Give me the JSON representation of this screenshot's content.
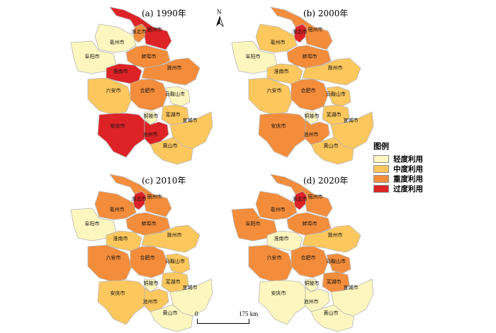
{
  "legend": {
    "title": "图例",
    "items": [
      {
        "key": "light",
        "label": "轻度利用",
        "color": "#fdf7bf"
      },
      {
        "key": "medium",
        "label": "中度利用",
        "color": "#fcc75d"
      },
      {
        "key": "heavy",
        "label": "重度利用",
        "color": "#f48d3b"
      },
      {
        "key": "over",
        "label": "过度利用",
        "color": "#dd2326"
      }
    ]
  },
  "north_arrow": {
    "label": "N"
  },
  "scale_bar": {
    "zero": "0",
    "end": "175 km"
  },
  "cities": [
    {
      "id": "suzhou",
      "name": "宿州市"
    },
    {
      "id": "huaibei",
      "name": "淮北市"
    },
    {
      "id": "bozhou",
      "name": "亳州市"
    },
    {
      "id": "fuyang",
      "name": "阜阳市"
    },
    {
      "id": "bengbu",
      "name": "蚌埠市"
    },
    {
      "id": "huainan",
      "name": "淮南市"
    },
    {
      "id": "chuzhou",
      "name": "滁州市"
    },
    {
      "id": "luan",
      "name": "六安市"
    },
    {
      "id": "hefei",
      "name": "合肥市"
    },
    {
      "id": "maanshan",
      "name": "马鞍山市"
    },
    {
      "id": "wuhu",
      "name": "芜湖市"
    },
    {
      "id": "tongling",
      "name": "铜陵市"
    },
    {
      "id": "xuancheng",
      "name": "宣城市"
    },
    {
      "id": "anqing",
      "name": "安庆市"
    },
    {
      "id": "chizhou",
      "name": "池州市"
    },
    {
      "id": "huangshan",
      "name": "黄山市"
    }
  ],
  "panels": [
    {
      "id": "p1990",
      "title": "(a) 1990年",
      "levels": {
        "suzhou": "over",
        "huaibei": "heavy",
        "bozhou": "light",
        "fuyang": "light",
        "bengbu": "heavy",
        "huainan": "over",
        "chuzhou": "heavy",
        "luan": "medium",
        "hefei": "heavy",
        "maanshan": "light",
        "wuhu": "medium",
        "tongling": "light",
        "xuancheng": "medium",
        "anqing": "over",
        "chizhou": "over",
        "huangshan": "medium"
      }
    },
    {
      "id": "p2000",
      "title": "(b) 2000年",
      "levels": {
        "suzhou": "heavy",
        "huaibei": "over",
        "bozhou": "medium",
        "fuyang": "light",
        "bengbu": "heavy",
        "huainan": "medium",
        "chuzhou": "medium",
        "luan": "medium",
        "hefei": "heavy",
        "maanshan": "medium",
        "wuhu": "medium",
        "tongling": "light",
        "xuancheng": "medium",
        "anqing": "heavy",
        "chizhou": "heavy",
        "huangshan": "medium"
      }
    },
    {
      "id": "p2010",
      "title": "(c) 2010年",
      "levels": {
        "suzhou": "heavy",
        "huaibei": "over",
        "bozhou": "heavy",
        "fuyang": "light",
        "bengbu": "heavy",
        "huainan": "medium",
        "chuzhou": "medium",
        "luan": "heavy",
        "hefei": "heavy",
        "maanshan": "medium",
        "wuhu": "medium",
        "tongling": "light",
        "xuancheng": "light",
        "anqing": "medium",
        "chizhou": "medium",
        "huangshan": "light"
      }
    },
    {
      "id": "p2020",
      "title": "(d) 2020年",
      "levels": {
        "suzhou": "heavy",
        "huaibei": "over",
        "bozhou": "heavy",
        "fuyang": "heavy",
        "bengbu": "heavy",
        "huainan": "light",
        "chuzhou": "medium",
        "luan": "heavy",
        "hefei": "heavy",
        "maanshan": "heavy",
        "wuhu": "heavy",
        "tongling": "light",
        "xuancheng": "light",
        "anqing": "light",
        "chizhou": "light",
        "huangshan": "light"
      }
    }
  ]
}
